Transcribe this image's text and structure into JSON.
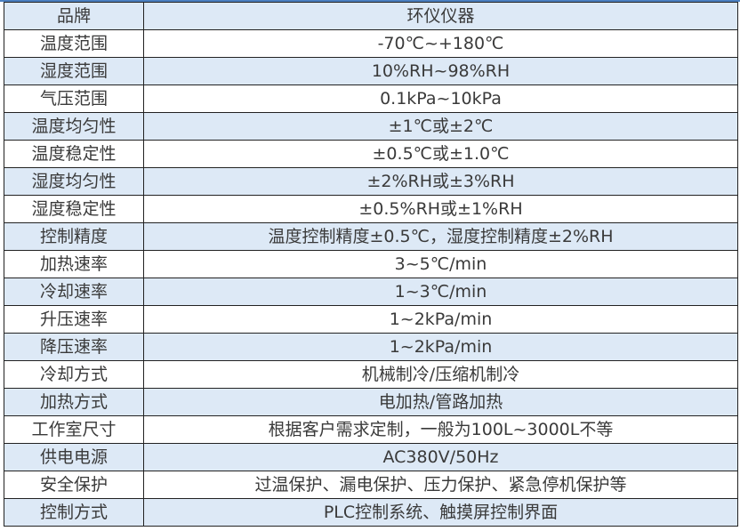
{
  "colors": {
    "stripe": "#dde9f6",
    "border": "#222222",
    "text": "#3a3a3a"
  },
  "rows": [
    {
      "k": "品牌",
      "v": "环仪仪器"
    },
    {
      "k": "温度范围",
      "v": "-70℃~+180℃"
    },
    {
      "k": "湿度范围",
      "v": "10%RH~98%RH"
    },
    {
      "k": "气压范围",
      "v": "0.1kPa~10kPa"
    },
    {
      "k": "温度均匀性",
      "v": "±1℃或±2℃"
    },
    {
      "k": "温度稳定性",
      "v": "±0.5℃或±1.0℃"
    },
    {
      "k": "湿度均匀性",
      "v": "±2%RH或±3%RH"
    },
    {
      "k": "湿度稳定性",
      "v": "±0.5%RH或±1%RH"
    },
    {
      "k": "控制精度",
      "v": "温度控制精度±0.5℃，湿度控制精度±2%RH"
    },
    {
      "k": "加热速率",
      "v": "3~5℃/min"
    },
    {
      "k": "冷却速率",
      "v": "1~3℃/min"
    },
    {
      "k": "升压速率",
      "v": "1~2kPa/min"
    },
    {
      "k": "降压速率",
      "v": "1~2kPa/min"
    },
    {
      "k": "冷却方式",
      "v": "机械制冷/压缩机制冷"
    },
    {
      "k": "加热方式",
      "v": "电加热/管路加热"
    },
    {
      "k": "工作室尺寸",
      "v": "根据客户需求定制，一般为100L~3000L不等"
    },
    {
      "k": "供电电源",
      "v": "AC380V/50Hz"
    },
    {
      "k": "安全保护",
      "v": "过温保护、漏电保护、压力保护、紧急停机保护等"
    },
    {
      "k": "控制方式",
      "v": "PLC控制系统、触摸屏控制界面"
    }
  ]
}
